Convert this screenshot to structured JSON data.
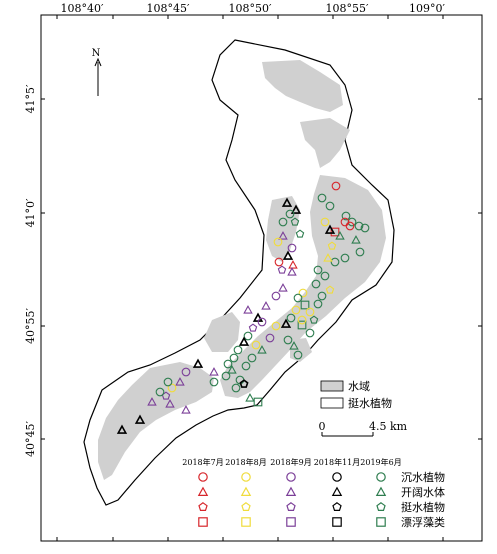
{
  "map": {
    "north_label": "N",
    "longitude_labels": [
      "108°40′",
      "108°45′",
      "108°50′",
      "108°55′",
      "109°0′"
    ],
    "latitude_labels": [
      "41°5′",
      "41°0′",
      "40°55′",
      "40°45′"
    ],
    "legend_fill": {
      "water_label": "水域",
      "emergent_label": "挺水植物"
    },
    "scale_bar": {
      "start_label": "0",
      "end_label": "4.5 km"
    },
    "symbol_legend": {
      "dates": [
        "2018年7月",
        "2018年8月",
        "2018年9月",
        "2018年11月",
        "2019年6月"
      ],
      "date_colors": [
        "#d7262b",
        "#f0dc3c",
        "#7b3f98",
        "#000000",
        "#2e7d4f"
      ],
      "categories": [
        "沉水植物",
        "开阔水体",
        "挺水植物",
        "漂浮藻类"
      ],
      "category_shapes": [
        "circle",
        "triangle",
        "pentagon",
        "square"
      ]
    }
  }
}
